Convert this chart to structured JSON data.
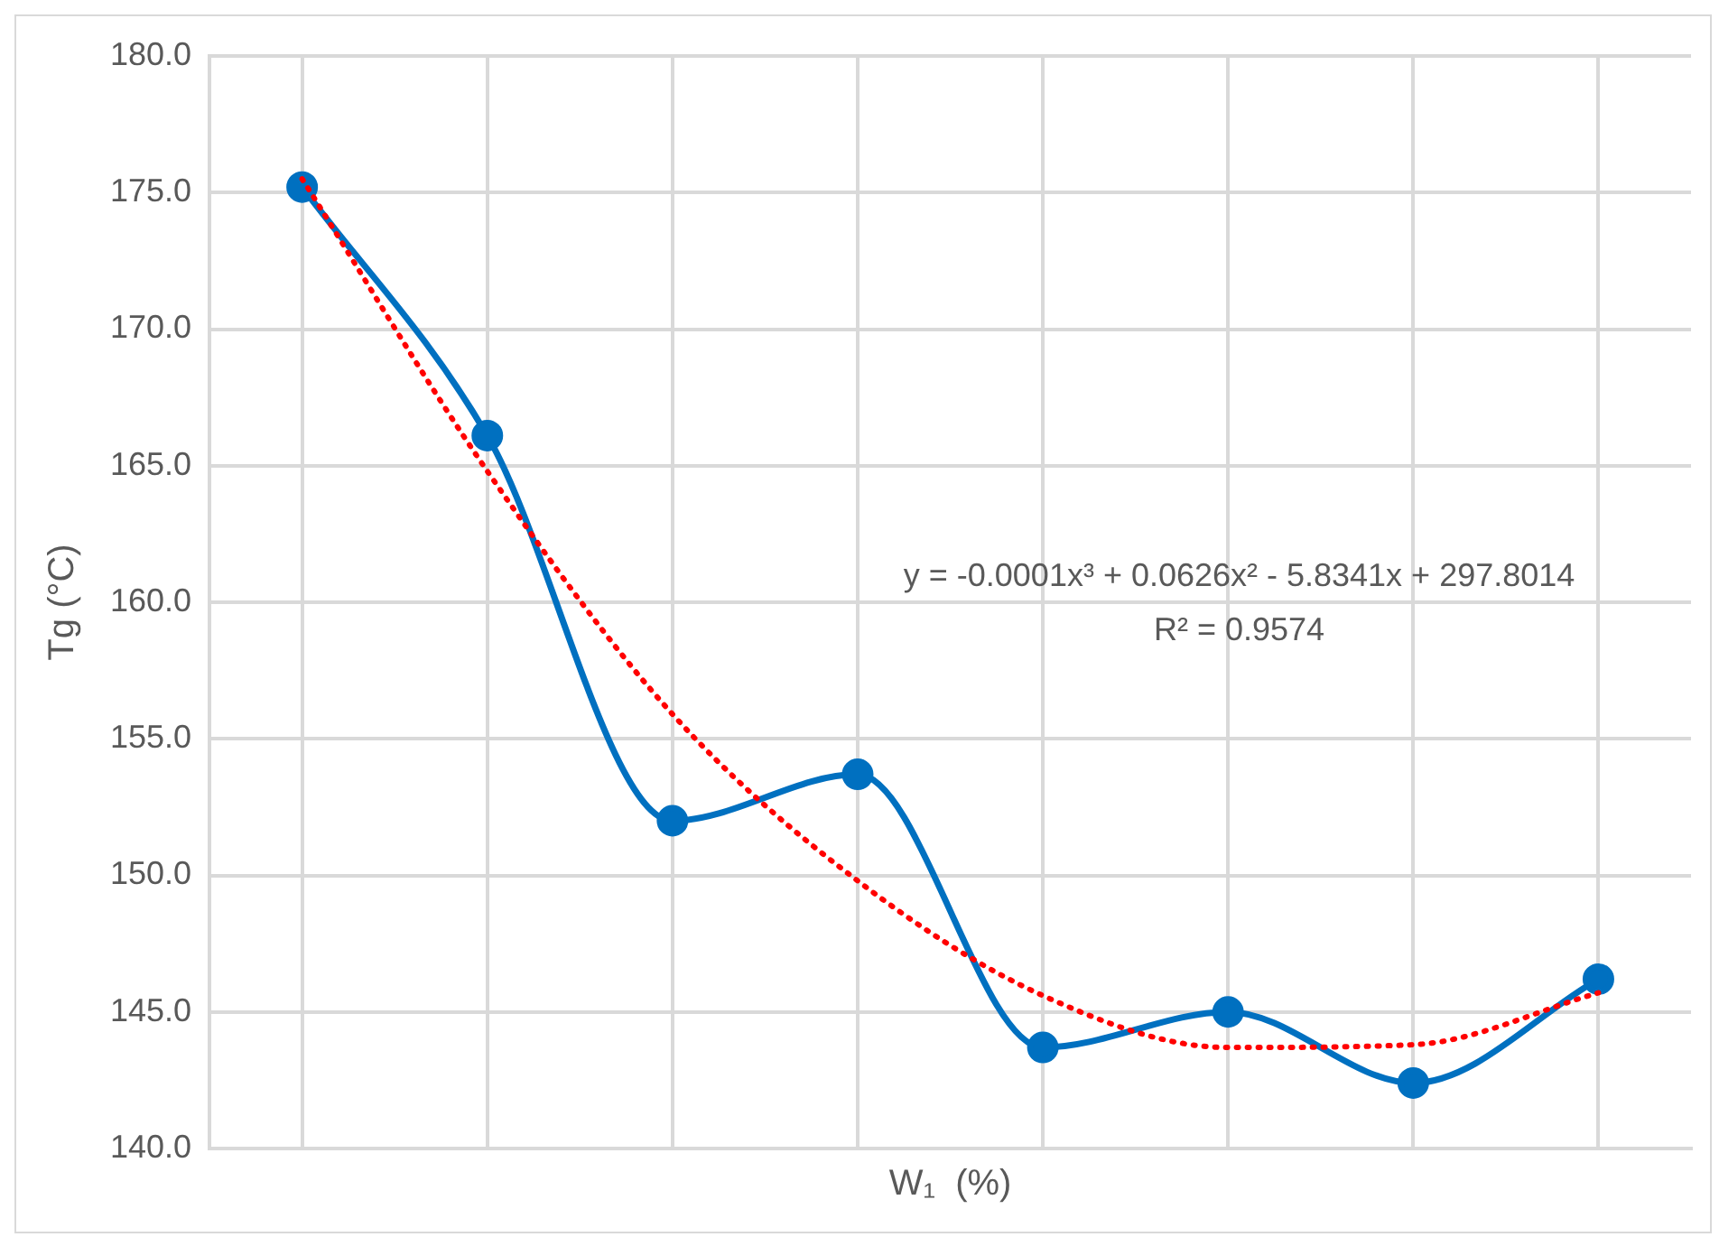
{
  "chart_data": {
    "type": "line",
    "xlabel": "W₁  (%)",
    "ylabel": "Tg (°C)",
    "categories": [
      null,
      null,
      null,
      null,
      null,
      null,
      null,
      null
    ],
    "series": [
      {
        "color": "#0070c0",
        "marker": "circle",
        "line_style": "solid",
        "values": [
          175.2,
          166.1,
          152.0,
          153.7,
          143.7,
          145.0,
          142.4,
          146.2
        ]
      },
      {
        "color": "#ff0000",
        "marker": "none",
        "line_style": "dotted",
        "values": [
          175.5,
          164.8,
          155.9,
          149.8,
          145.6,
          143.7,
          143.8,
          145.7
        ]
      }
    ],
    "ylim": [
      140,
      180
    ],
    "yticks": [
      {
        "value": 140,
        "label": "140.0"
      },
      {
        "value": 145,
        "label": "145.0"
      },
      {
        "value": 150,
        "label": "150.0"
      },
      {
        "value": 155,
        "label": "155.0"
      },
      {
        "value": 160,
        "label": "160.0"
      },
      {
        "value": 165,
        "label": "165.0"
      },
      {
        "value": 170,
        "label": "170.0"
      },
      {
        "value": 175,
        "label": "175.0"
      },
      {
        "value": 180,
        "label": "180.0"
      }
    ],
    "grid": true,
    "tick_labels": "y",
    "annotations": [
      "y = -0.0001x³ + 0.0626x² - 5.8341x + 297.8014",
      "R² = 0.9574"
    ]
  }
}
